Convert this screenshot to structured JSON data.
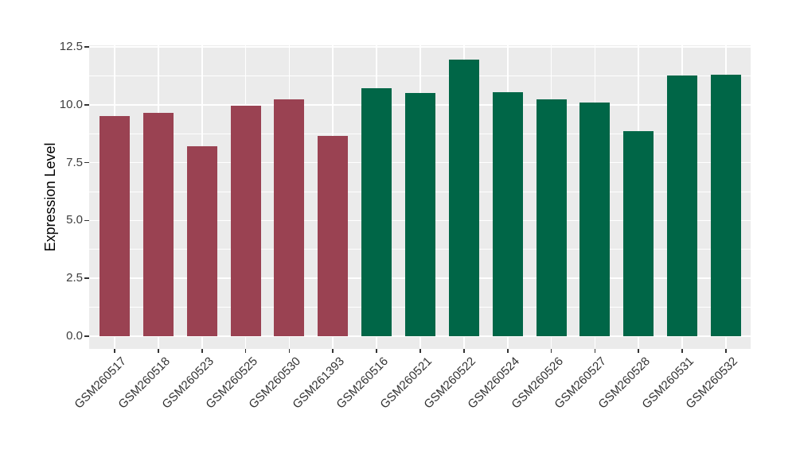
{
  "chart_data": {
    "type": "bar",
    "title": "",
    "xlabel": "",
    "ylabel": "Expression Level",
    "categories": [
      "GSM260517",
      "GSM260518",
      "GSM260523",
      "GSM260525",
      "GSM260530",
      "GSM261393",
      "GSM260516",
      "GSM260521",
      "GSM260522",
      "GSM260524",
      "GSM260526",
      "GSM260527",
      "GSM260528",
      "GSM260531",
      "GSM260532"
    ],
    "values": [
      9.5,
      9.65,
      8.2,
      9.95,
      10.25,
      8.65,
      10.7,
      10.5,
      11.95,
      10.55,
      10.25,
      10.1,
      8.85,
      11.25,
      11.3
    ],
    "groups": [
      "maroon",
      "maroon",
      "maroon",
      "maroon",
      "maroon",
      "maroon",
      "green",
      "green",
      "green",
      "green",
      "green",
      "green",
      "green",
      "green",
      "green"
    ],
    "group_colors": {
      "maroon": "#9A4252",
      "green": "#006647"
    },
    "yticks": [
      0.0,
      2.5,
      5.0,
      7.5,
      10.0,
      12.5
    ],
    "ytick_labels": [
      "0.0",
      "2.5",
      "5.0",
      "7.5",
      "10.0",
      "12.5"
    ],
    "ylim": [
      0,
      12.6
    ],
    "x_label_rotation_deg": 45,
    "legend": "none",
    "grid": {
      "horizontal": "major+minor",
      "vertical": "major-at-category-centers",
      "color": "#FFFFFF"
    },
    "panel_background": "#EBEBEB",
    "figure_background": "#FFFFFF",
    "axis_text_color": "#3D3D3D",
    "tick_mark_color": "#333333"
  }
}
